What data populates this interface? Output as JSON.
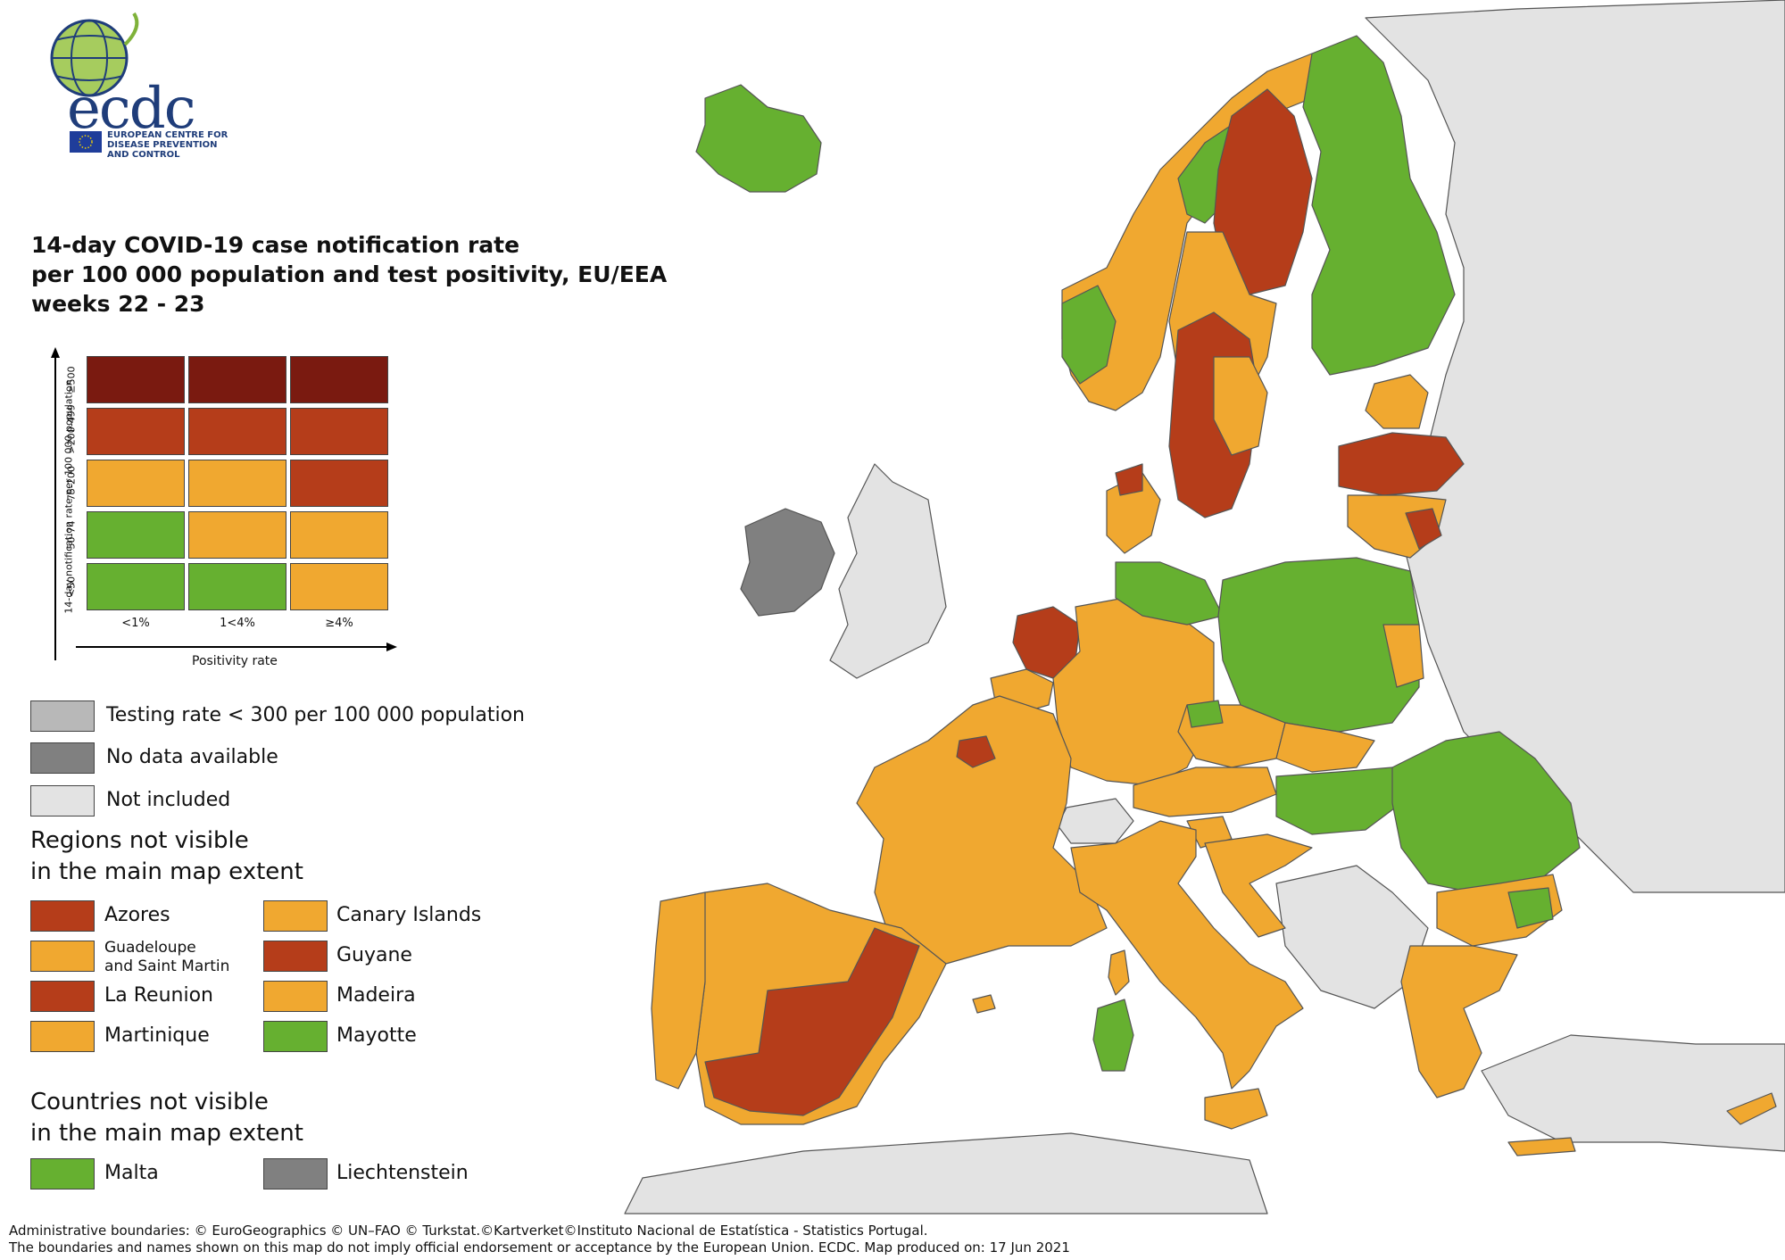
{
  "header": {
    "logo_word": "ecdc",
    "agency_lines": [
      "EUROPEAN CENTRE FOR",
      "DISEASE PREVENTION",
      "AND CONTROL"
    ],
    "title_lines": [
      "14-day COVID-19 case notification rate",
      "per 100 000 population and test positivity, EU/EEA",
      "weeks 22 - 23"
    ]
  },
  "colors": {
    "dark_red": "#7a1a10",
    "red": "#b53d1a",
    "orange": "#f0a830",
    "green": "#66b030",
    "light_grey": "#b8b8b8",
    "dark_grey": "#808080",
    "not_included": "#e3e3e3",
    "sea": "#ffffff"
  },
  "matrix": {
    "y_axis_label": "14-day notification rate per 100 000 population",
    "x_axis_label": "Positivity rate",
    "rows": [
      {
        "label": "≥500",
        "cells": [
          "dark_red",
          "dark_red",
          "dark_red"
        ]
      },
      {
        "label": ">200-499",
        "cells": [
          "red",
          "red",
          "red"
        ]
      },
      {
        "label": "75-200",
        "cells": [
          "orange",
          "orange",
          "red"
        ]
      },
      {
        "label": "50-74",
        "cells": [
          "green",
          "orange",
          "orange"
        ]
      },
      {
        "label": "<50",
        "cells": [
          "green",
          "green",
          "orange"
        ]
      }
    ],
    "columns": [
      "<1%",
      "1<4%",
      "≥4%"
    ]
  },
  "legend": {
    "testing": "Testing rate < 300 per 100 000 population",
    "no_data": "No data available",
    "not_included": "Not included"
  },
  "regions_heading": [
    "Regions not visible",
    "in the main map extent"
  ],
  "regions": [
    {
      "name": "Azores",
      "color": "red"
    },
    {
      "name": "Canary Islands",
      "color": "orange"
    },
    {
      "name": "Guadeloupe and Saint Martin",
      "lines": [
        "Guadeloupe",
        "and Saint Martin"
      ],
      "color": "orange"
    },
    {
      "name": "Guyane",
      "color": "red"
    },
    {
      "name": "La Reunion",
      "color": "red"
    },
    {
      "name": "Madeira",
      "color": "orange"
    },
    {
      "name": "Martinique",
      "color": "orange"
    },
    {
      "name": "Mayotte",
      "color": "green"
    }
  ],
  "countries_heading": [
    "Countries not visible",
    "in the main map extent"
  ],
  "countries": [
    {
      "name": "Malta",
      "color": "green"
    },
    {
      "name": "Liechtenstein",
      "color": "dark_grey"
    }
  ],
  "footer_lines": [
    "Administrative boundaries: © EuroGeographics © UN–FAO © Turkstat.©Kartverket©Instituto Nacional de Estatística - Statistics Portugal.",
    "The boundaries and names shown on this map do not imply official endorsement or acceptance by the European Union. ECDC. Map produced on: 17 Jun 2021"
  ]
}
